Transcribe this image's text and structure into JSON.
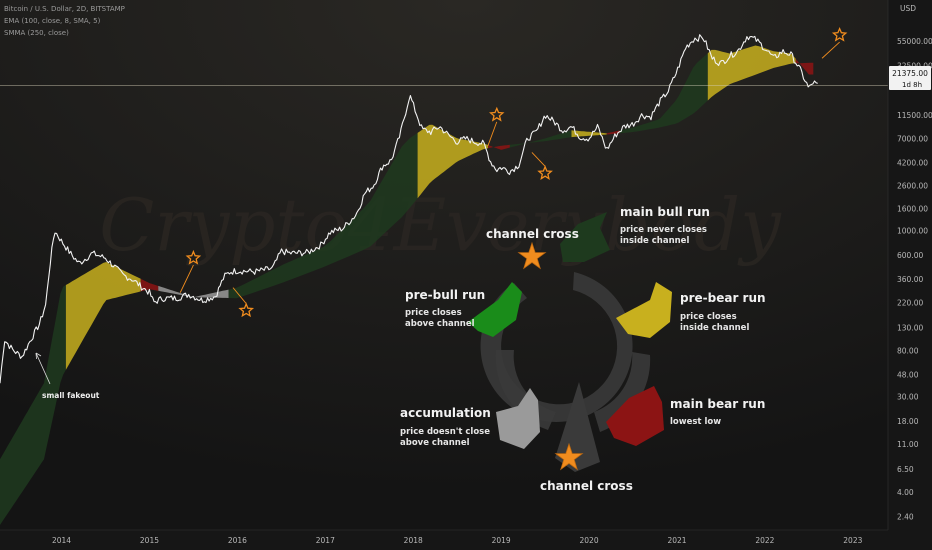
{
  "header": {
    "title": "Bitcoin / U.S. Dollar, 2D, BITSTAMP",
    "ema_label": "EMA (100, close, 8, SMA, 5)",
    "smma_label": "SMMA (250, close)",
    "currency": "USD"
  },
  "price_tag": {
    "price": "21375.00",
    "countdown": "1d 8h"
  },
  "watermark": "Crypto4Everybody",
  "colors": {
    "accumulation": "#9a9a9a",
    "pre_bull": "#1a8c1a",
    "main_bull": "#1e3a1e",
    "pre_bear": "#c8b01e",
    "main_bear": "#8c1414",
    "star": "#f08c1e"
  },
  "cycle": {
    "channel_cross_top": "channel cross",
    "channel_cross_bottom": "channel cross",
    "main_bull": {
      "title": "main bull run",
      "desc1": "price never closes",
      "desc2": "inside channel"
    },
    "pre_bull": {
      "title": "pre-bull run",
      "desc1": "price closes",
      "desc2": "above channel"
    },
    "pre_bear": {
      "title": "pre-bear run",
      "desc1": "price closes",
      "desc2": "inside channel"
    },
    "main_bear": {
      "title": "main bear run",
      "desc1": "lowest low"
    },
    "accumulation": {
      "title": "accumulation",
      "desc1": "price doesn't close",
      "desc2": "above channel"
    }
  },
  "notes": {
    "small_fakeout": "small fakeout"
  },
  "chart_data": {
    "type": "line",
    "title": "Bitcoin / U.S. Dollar, 2D, BITSTAMP",
    "y_scale": "log",
    "ylabel": "USD",
    "ylim": [
      1.8,
      130000
    ],
    "xlim": [
      2013.3,
      2023.4
    ],
    "y_ticks": [
      "55000.00",
      "32500.00",
      "11500.00",
      "7000.00",
      "4200.00",
      "2600.00",
      "1600.00",
      "1000.00",
      "600.00",
      "360.00",
      "220.00",
      "130.00",
      "80.00",
      "48.00",
      "30.00",
      "18.00",
      "11.00",
      "6.50",
      "4.00",
      "2.40"
    ],
    "x_ticks": [
      "2014",
      "2015",
      "2016",
      "2017",
      "2018",
      "2019",
      "2020",
      "2021",
      "2022",
      "2023"
    ],
    "series": [
      {
        "name": "",
        "x": [
          2013.3,
          2013.35,
          2013.45,
          2013.55,
          2013.65,
          2013.75,
          2013.82,
          2013.87,
          2013.92,
          2014.0,
          2014.1,
          2014.2,
          2014.35,
          2014.5,
          2014.6,
          2014.7,
          2014.8,
          2014.9,
          2015.0,
          2015.05,
          2015.15,
          2015.3,
          2015.45,
          2015.6,
          2015.75,
          2015.85,
          2015.92,
          2016.0,
          2016.2,
          2016.4,
          2016.5,
          2016.6,
          2016.8,
          2016.95,
          2017.05,
          2017.2,
          2017.35,
          2017.45,
          2017.55,
          2017.65,
          2017.75,
          2017.85,
          2017.96,
          2018.05,
          2018.1,
          2018.2,
          2018.3,
          2018.4,
          2018.5,
          2018.6,
          2018.7,
          2018.8,
          2018.88,
          2018.95,
          2019.0,
          2019.1,
          2019.2,
          2019.3,
          2019.4,
          2019.5,
          2019.6,
          2019.7,
          2019.8,
          2019.9,
          2020.0,
          2020.1,
          2020.2,
          2020.3,
          2020.4,
          2020.5,
          2020.6,
          2020.7,
          2020.8,
          2020.9,
          2021.0,
          2021.1,
          2021.2,
          2021.3,
          2021.4,
          2021.5,
          2021.6,
          2021.7,
          2021.8,
          2021.9,
          2022.0,
          2022.1,
          2022.2,
          2022.3,
          2022.4,
          2022.5,
          2022.55,
          2022.6
        ],
        "values": [
          40,
          100,
          80,
          70,
          100,
          140,
          210,
          500,
          1000,
          800,
          620,
          500,
          620,
          560,
          470,
          390,
          360,
          310,
          270,
          220,
          240,
          240,
          260,
          230,
          250,
          380,
          420,
          430,
          420,
          450,
          650,
          620,
          630,
          740,
          960,
          1050,
          1400,
          2200,
          2600,
          3900,
          4400,
          7500,
          17500,
          11000,
          8500,
          8000,
          9000,
          7500,
          6500,
          7000,
          6500,
          6300,
          4300,
          3600,
          3800,
          3500,
          4000,
          7000,
          8000,
          11500,
          10000,
          8300,
          9000,
          7200,
          7000,
          9000,
          5500,
          7500,
          9000,
          9500,
          11500,
          11000,
          15000,
          19000,
          29000,
          48000,
          58000,
          59000,
          38000,
          34000,
          40000,
          45000,
          61000,
          56000,
          47000,
          38000,
          44000,
          41000,
          30000,
          20000,
          23000,
          21375
        ]
      },
      {
        "name": "",
        "x": [
          2013.3,
          2013.8,
          2014.0,
          2014.5,
          2015.0,
          2015.5,
          2016.0,
          2016.5,
          2017.0,
          2017.5,
          2017.9,
          2018.2,
          2018.5,
          2018.8,
          2019.0,
          2019.5,
          2019.8,
          2020.2,
          2020.5,
          2020.8,
          2021.0,
          2021.2,
          2021.4,
          2021.6,
          2021.9,
          2022.1,
          2022.3,
          2022.5
        ],
        "values": [
          8,
          40,
          300,
          520,
          330,
          245,
          300,
          480,
          720,
          1800,
          6500,
          9500,
          7000,
          6300,
          5500,
          7000,
          8300,
          7800,
          8800,
          10500,
          16000,
          33000,
          46000,
          42000,
          50000,
          44000,
          42000,
          27000
        ]
      },
      {
        "name": "",
        "x": [
          2013.3,
          2013.8,
          2014.0,
          2014.5,
          2015.0,
          2015.5,
          2016.0,
          2016.5,
          2017.0,
          2017.5,
          2017.9,
          2018.2,
          2018.5,
          2018.8,
          2019.0,
          2019.5,
          2019.8,
          2020.2,
          2020.5,
          2020.8,
          2021.0,
          2021.2,
          2021.4,
          2021.6,
          2021.9,
          2022.1,
          2022.3,
          2022.5
        ],
        "values": [
          2,
          8,
          45,
          230,
          290,
          245,
          240,
          330,
          470,
          700,
          1400,
          2800,
          4300,
          5600,
          6000,
          6600,
          7200,
          7600,
          8000,
          8800,
          9600,
          12000,
          17000,
          22000,
          27000,
          31000,
          34000,
          34500
        ]
      }
    ],
    "current_price": 21375,
    "channel_phases": [
      {
        "phase": "main_bull",
        "from": 2013.3,
        "to": 2014.05
      },
      {
        "phase": "pre_bear",
        "from": 2014.05,
        "to": 2014.9
      },
      {
        "phase": "main_bear",
        "from": 2014.9,
        "to": 2015.1
      },
      {
        "phase": "accumulation",
        "from": 2015.1,
        "to": 2015.9
      },
      {
        "phase": "main_bull",
        "from": 2015.9,
        "to": 2018.05
      },
      {
        "phase": "pre_bear",
        "from": 2018.05,
        "to": 2018.85
      },
      {
        "phase": "main_bear",
        "from": 2018.85,
        "to": 2019.1
      },
      {
        "phase": "main_bull",
        "from": 2019.1,
        "to": 2019.8
      },
      {
        "phase": "pre_bear",
        "from": 2019.8,
        "to": 2020.2
      },
      {
        "phase": "main_bear",
        "from": 2020.2,
        "to": 2020.35
      },
      {
        "phase": "main_bull",
        "from": 2020.35,
        "to": 2021.35
      },
      {
        "phase": "pre_bear",
        "from": 2021.35,
        "to": 2022.35
      },
      {
        "phase": "main_bear",
        "from": 2022.35,
        "to": 2022.55
      }
    ],
    "star_markers": [
      {
        "x": 2015.5,
        "y": 560
      },
      {
        "x": 2016.1,
        "y": 185
      },
      {
        "x": 2018.95,
        "y": 11500
      },
      {
        "x": 2019.5,
        "y": 3350
      },
      {
        "x": 2022.85,
        "y": 62000
      }
    ],
    "annotations": [
      "small fakeout"
    ],
    "grid": false
  }
}
